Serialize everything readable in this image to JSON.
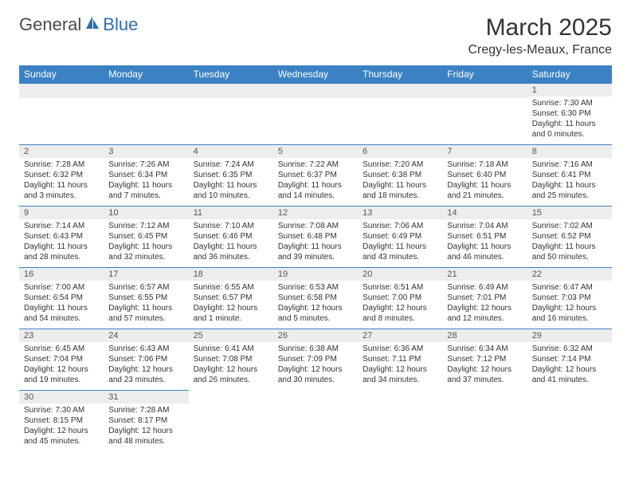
{
  "logo": {
    "text1": "General",
    "text2": "Blue",
    "color_general": "#4a4a4a",
    "color_blue": "#2f6fae"
  },
  "header": {
    "title": "March 2025",
    "location": "Cregy-les-Meaux, France"
  },
  "colors": {
    "header_bg": "#3b82c4",
    "header_fg": "#ffffff",
    "daynum_bg": "#eceded",
    "border": "#3b82c4"
  },
  "weekdays": [
    "Sunday",
    "Monday",
    "Tuesday",
    "Wednesday",
    "Thursday",
    "Friday",
    "Saturday"
  ],
  "weeks": [
    [
      null,
      null,
      null,
      null,
      null,
      null,
      {
        "n": "1",
        "sunrise": "7:30 AM",
        "sunset": "6:30 PM",
        "day_h": "11",
        "day_m": "0"
      }
    ],
    [
      {
        "n": "2",
        "sunrise": "7:28 AM",
        "sunset": "6:32 PM",
        "day_h": "11",
        "day_m": "3"
      },
      {
        "n": "3",
        "sunrise": "7:26 AM",
        "sunset": "6:34 PM",
        "day_h": "11",
        "day_m": "7"
      },
      {
        "n": "4",
        "sunrise": "7:24 AM",
        "sunset": "6:35 PM",
        "day_h": "11",
        "day_m": "10"
      },
      {
        "n": "5",
        "sunrise": "7:22 AM",
        "sunset": "6:37 PM",
        "day_h": "11",
        "day_m": "14"
      },
      {
        "n": "6",
        "sunrise": "7:20 AM",
        "sunset": "6:38 PM",
        "day_h": "11",
        "day_m": "18"
      },
      {
        "n": "7",
        "sunrise": "7:18 AM",
        "sunset": "6:40 PM",
        "day_h": "11",
        "day_m": "21"
      },
      {
        "n": "8",
        "sunrise": "7:16 AM",
        "sunset": "6:41 PM",
        "day_h": "11",
        "day_m": "25"
      }
    ],
    [
      {
        "n": "9",
        "sunrise": "7:14 AM",
        "sunset": "6:43 PM",
        "day_h": "11",
        "day_m": "28"
      },
      {
        "n": "10",
        "sunrise": "7:12 AM",
        "sunset": "6:45 PM",
        "day_h": "11",
        "day_m": "32"
      },
      {
        "n": "11",
        "sunrise": "7:10 AM",
        "sunset": "6:46 PM",
        "day_h": "11",
        "day_m": "36"
      },
      {
        "n": "12",
        "sunrise": "7:08 AM",
        "sunset": "6:48 PM",
        "day_h": "11",
        "day_m": "39"
      },
      {
        "n": "13",
        "sunrise": "7:06 AM",
        "sunset": "6:49 PM",
        "day_h": "11",
        "day_m": "43"
      },
      {
        "n": "14",
        "sunrise": "7:04 AM",
        "sunset": "6:51 PM",
        "day_h": "11",
        "day_m": "46"
      },
      {
        "n": "15",
        "sunrise": "7:02 AM",
        "sunset": "6:52 PM",
        "day_h": "11",
        "day_m": "50"
      }
    ],
    [
      {
        "n": "16",
        "sunrise": "7:00 AM",
        "sunset": "6:54 PM",
        "day_h": "11",
        "day_m": "54"
      },
      {
        "n": "17",
        "sunrise": "6:57 AM",
        "sunset": "6:55 PM",
        "day_h": "11",
        "day_m": "57"
      },
      {
        "n": "18",
        "sunrise": "6:55 AM",
        "sunset": "6:57 PM",
        "day_h": "12",
        "day_m": "1",
        "singular": true
      },
      {
        "n": "19",
        "sunrise": "6:53 AM",
        "sunset": "6:58 PM",
        "day_h": "12",
        "day_m": "5"
      },
      {
        "n": "20",
        "sunrise": "6:51 AM",
        "sunset": "7:00 PM",
        "day_h": "12",
        "day_m": "8"
      },
      {
        "n": "21",
        "sunrise": "6:49 AM",
        "sunset": "7:01 PM",
        "day_h": "12",
        "day_m": "12"
      },
      {
        "n": "22",
        "sunrise": "6:47 AM",
        "sunset": "7:03 PM",
        "day_h": "12",
        "day_m": "16"
      }
    ],
    [
      {
        "n": "23",
        "sunrise": "6:45 AM",
        "sunset": "7:04 PM",
        "day_h": "12",
        "day_m": "19"
      },
      {
        "n": "24",
        "sunrise": "6:43 AM",
        "sunset": "7:06 PM",
        "day_h": "12",
        "day_m": "23"
      },
      {
        "n": "25",
        "sunrise": "6:41 AM",
        "sunset": "7:08 PM",
        "day_h": "12",
        "day_m": "26"
      },
      {
        "n": "26",
        "sunrise": "6:38 AM",
        "sunset": "7:09 PM",
        "day_h": "12",
        "day_m": "30"
      },
      {
        "n": "27",
        "sunrise": "6:36 AM",
        "sunset": "7:11 PM",
        "day_h": "12",
        "day_m": "34"
      },
      {
        "n": "28",
        "sunrise": "6:34 AM",
        "sunset": "7:12 PM",
        "day_h": "12",
        "day_m": "37"
      },
      {
        "n": "29",
        "sunrise": "6:32 AM",
        "sunset": "7:14 PM",
        "day_h": "12",
        "day_m": "41"
      }
    ],
    [
      {
        "n": "30",
        "sunrise": "7:30 AM",
        "sunset": "8:15 PM",
        "day_h": "12",
        "day_m": "45"
      },
      {
        "n": "31",
        "sunrise": "7:28 AM",
        "sunset": "8:17 PM",
        "day_h": "12",
        "day_m": "48"
      },
      null,
      null,
      null,
      null,
      null
    ]
  ],
  "labels": {
    "sunrise": "Sunrise:",
    "sunset": "Sunset:",
    "daylight": "Daylight:",
    "hours": "hours",
    "and": "and",
    "minute": "minute.",
    "minutes": "minutes."
  }
}
